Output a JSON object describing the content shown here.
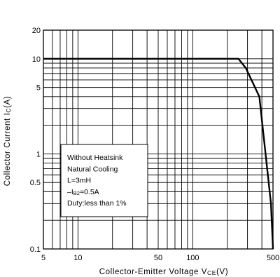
{
  "chart_data": {
    "type": "line",
    "xscale": "log",
    "yscale": "log",
    "xlim": [
      5,
      500
    ],
    "ylim": [
      0.1,
      20
    ],
    "xlabel": "Collector-Emitter Voltage VCE(V)",
    "xlabel_parts": {
      "main": "Collector-Emitter Voltage V",
      "sub": "CE",
      "unit": "(V)"
    },
    "ylabel": "Collector Current Ic(A)",
    "ylabel_parts": {
      "main": "Collector Current I",
      "sub": "C",
      "unit": "(A)"
    },
    "x_ticks": [
      {
        "value": 5,
        "label": "5"
      },
      {
        "value": 10,
        "label": "10"
      },
      {
        "value": 50,
        "label": "50"
      },
      {
        "value": 100,
        "label": "100"
      },
      {
        "value": 500,
        "label": "500"
      }
    ],
    "y_ticks": [
      {
        "value": 0.1,
        "label": "0.1"
      },
      {
        "value": 0.5,
        "label": "0.5"
      },
      {
        "value": 1,
        "label": "1"
      },
      {
        "value": 5,
        "label": "5"
      },
      {
        "value": 10,
        "label": "10"
      },
      {
        "value": 20,
        "label": "20"
      }
    ],
    "x_grid": [
      5,
      6,
      7,
      8,
      9,
      10,
      20,
      30,
      40,
      50,
      60,
      70,
      80,
      90,
      100,
      200,
      300,
      400,
      500
    ],
    "y_grid": [
      0.1,
      0.2,
      0.3,
      0.4,
      0.5,
      0.6,
      0.7,
      0.8,
      0.9,
      1,
      2,
      3,
      4,
      5,
      6,
      7,
      8,
      9,
      10,
      20
    ],
    "highlight_x": 40,
    "grid": true,
    "series": [
      {
        "x": [
          5,
          250,
          290,
          380,
          480,
          500
        ],
        "y": [
          10,
          10,
          8,
          4,
          0.3,
          0.1
        ]
      }
    ],
    "annotation": {
      "lines": [
        {
          "text": "Without Heatsink"
        },
        {
          "text": "Natural Cooling"
        },
        {
          "text": "L=3mH"
        },
        {
          "pre": "–I",
          "sub": "B2",
          "post": "=0.5A"
        },
        {
          "text": "Duty:less than 1%"
        }
      ]
    }
  }
}
